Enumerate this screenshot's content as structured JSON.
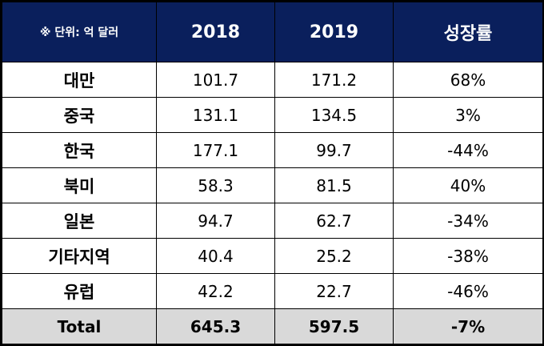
{
  "header": {
    "unit_label": "※ 단위: 억 달러",
    "col_2018": "2018",
    "col_2019": "2019",
    "col_growth": "성장률"
  },
  "rows": [
    {
      "region": "대만",
      "y2018": "101.7",
      "y2019": "171.2",
      "growth": "68%"
    },
    {
      "region": "중국",
      "y2018": "131.1",
      "y2019": "134.5",
      "growth": "3%"
    },
    {
      "region": "한국",
      "y2018": "177.1",
      "y2019": "99.7",
      "growth": "-44%"
    },
    {
      "region": "북미",
      "y2018": "58.3",
      "y2019": "81.5",
      "growth": "40%"
    },
    {
      "region": "일본",
      "y2018": "94.7",
      "y2019": "62.7",
      "growth": "-34%"
    },
    {
      "region": "기타지역",
      "y2018": "40.4",
      "y2019": "25.2",
      "growth": "-38%"
    },
    {
      "region": "유럽",
      "y2018": "42.2",
      "y2019": "22.7",
      "growth": "-46%"
    }
  ],
  "total": {
    "label": "Total",
    "y2018": "645.3",
    "y2019": "597.5",
    "growth": "-7%"
  },
  "colors": {
    "header_bg": "#0a1f5c",
    "total_bg": "#d9d9d9"
  }
}
